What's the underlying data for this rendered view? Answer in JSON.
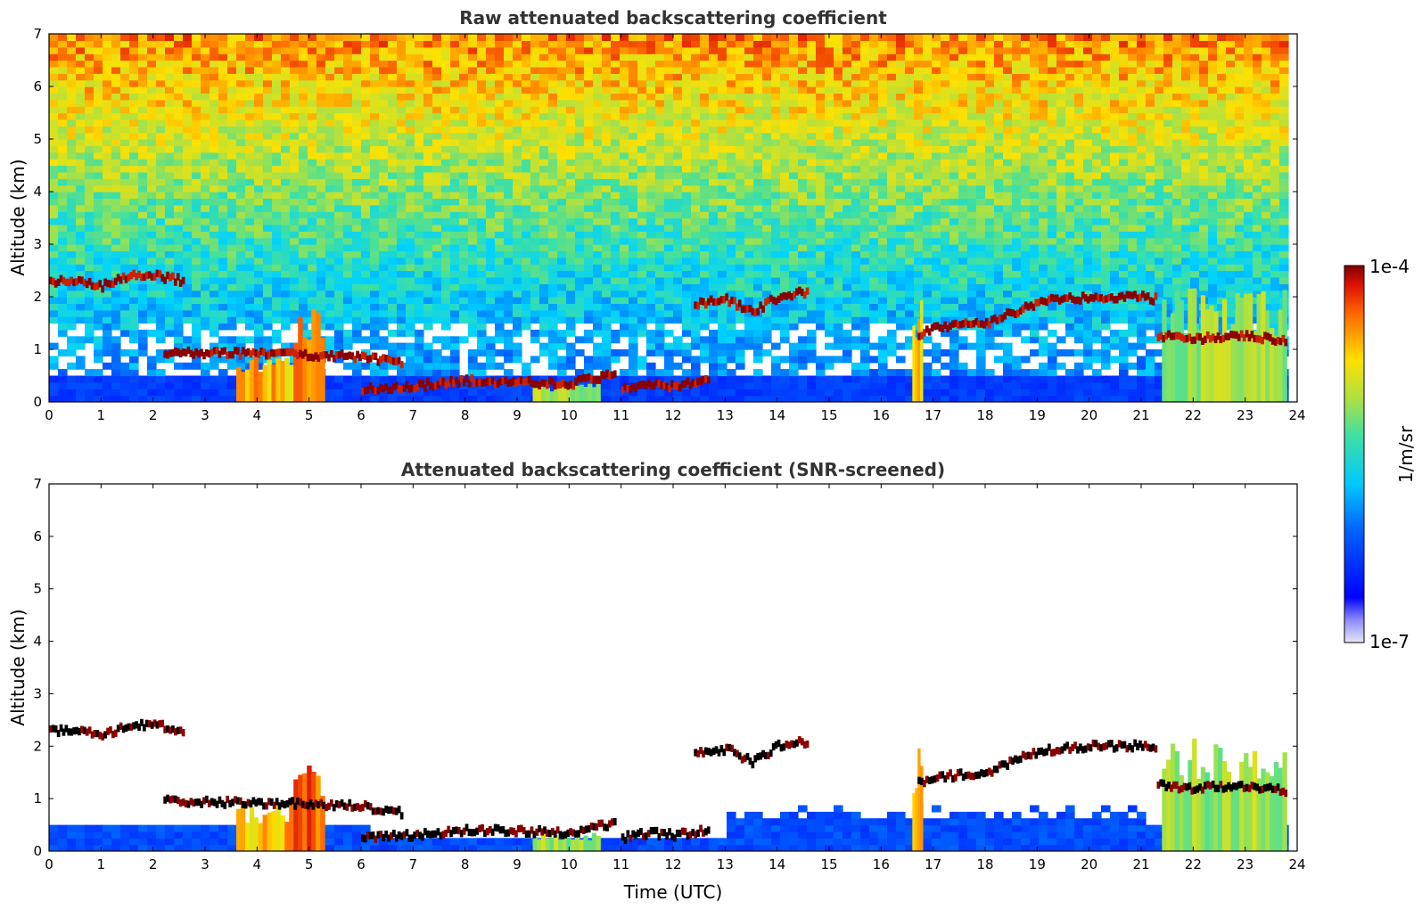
{
  "chart_data": [
    {
      "type": "heatmap",
      "title": "Raw attenuated backscattering coefficient",
      "xlabel": "",
      "ylabel": "Altitude (km)",
      "xlim": [
        0,
        24
      ],
      "ylim": [
        0,
        7
      ],
      "xticks": [
        "0",
        "1",
        "2",
        "3",
        "4",
        "5",
        "6",
        "7",
        "8",
        "9",
        "10",
        "11",
        "12",
        "13",
        "14",
        "15",
        "16",
        "17",
        "18",
        "19",
        "20",
        "21",
        "22",
        "23",
        "24"
      ],
      "yticks": [
        "0",
        "1",
        "2",
        "3",
        "4",
        "5",
        "6",
        "7"
      ],
      "screened": false
    },
    {
      "type": "heatmap",
      "title": "Attenuated backscattering coefficient (SNR-screened)",
      "xlabel": "Time (UTC)",
      "ylabel": "Altitude (km)",
      "xlim": [
        0,
        24
      ],
      "ylim": [
        0,
        7
      ],
      "xticks": [
        "0",
        "1",
        "2",
        "3",
        "4",
        "5",
        "6",
        "7",
        "8",
        "9",
        "10",
        "11",
        "12",
        "13",
        "14",
        "15",
        "16",
        "17",
        "18",
        "19",
        "20",
        "21",
        "22",
        "23",
        "24"
      ],
      "yticks": [
        "0",
        "1",
        "2",
        "3",
        "4",
        "5",
        "6",
        "7"
      ],
      "screened": true
    }
  ],
  "colorbar": {
    "label": "1/m/sr",
    "max_label": "1e-4",
    "min_label": "1e-7",
    "scale": "log",
    "colormap": "jet"
  },
  "features": {
    "cloud_layers": [
      {
        "t": [
          0.0,
          0.5,
          1.0,
          1.5,
          2.0,
          2.6
        ],
        "z": [
          2.3,
          2.3,
          2.2,
          2.4,
          2.4,
          2.3
        ]
      },
      {
        "t": [
          2.2,
          3.0,
          4.0,
          5.0,
          6.0,
          6.8
        ],
        "z": [
          0.95,
          0.93,
          0.92,
          0.9,
          0.85,
          0.72
        ]
      },
      {
        "t": [
          6.0,
          7.0,
          8.0,
          9.0,
          10.0,
          10.9
        ],
        "z": [
          0.25,
          0.3,
          0.4,
          0.38,
          0.35,
          0.55
        ]
      },
      {
        "t": [
          11.0,
          11.5,
          12.0,
          12.7
        ],
        "z": [
          0.25,
          0.35,
          0.3,
          0.4
        ]
      },
      {
        "t": [
          12.4,
          13.0,
          13.5,
          14.0,
          14.6
        ],
        "z": [
          1.85,
          1.95,
          1.7,
          2.0,
          2.1
        ]
      },
      {
        "t": [
          16.7,
          17.0,
          18.0,
          19.0,
          20.0,
          21.0,
          21.3
        ],
        "z": [
          1.3,
          1.4,
          1.5,
          1.9,
          2.0,
          2.0,
          1.95
        ]
      },
      {
        "t": [
          21.3,
          22.0,
          23.0,
          23.8
        ],
        "z": [
          1.25,
          1.2,
          1.25,
          1.15
        ]
      }
    ],
    "precip_columns": [
      {
        "t": [
          3.6,
          4.7
        ],
        "top": 0.95,
        "intensity": "high"
      },
      {
        "t": [
          4.7,
          5.3
        ],
        "top": 1.8,
        "intensity": "very-high"
      },
      {
        "t": [
          9.3,
          10.6
        ],
        "top": 0.35,
        "intensity": "medium"
      },
      {
        "t": [
          16.6,
          16.8
        ],
        "top": 2.0,
        "intensity": "high"
      },
      {
        "t": [
          21.4,
          23.8
        ],
        "top": 2.2,
        "intensity": "medium"
      }
    ]
  }
}
